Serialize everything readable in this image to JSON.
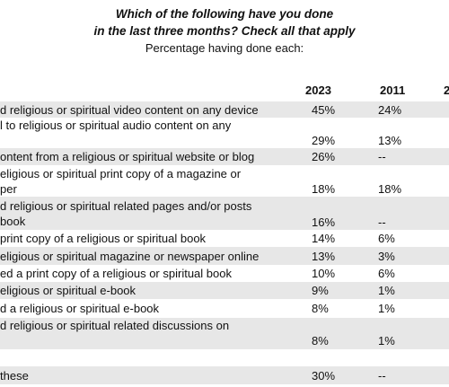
{
  "header": {
    "question_line1": "Which of the following have you done",
    "question_line2": "in the last three months? Check all that apply",
    "subtitle": "Percentage having done each:"
  },
  "columns": [
    "2023",
    "2011",
    "2"
  ],
  "rows": [
    {
      "label": "d religious or spiritual video content on any device",
      "v2023": "45%",
      "v2011": "24%",
      "shaded": true
    },
    {
      "label": "l to religious or spiritual audio content on any",
      "v2023": "29%",
      "v2011": "13%",
      "shaded": false
    },
    {
      "label": "ontent from a religious or spiritual website or blog",
      "v2023": "26%",
      "v2011": "--",
      "shaded": true
    },
    {
      "label": "eligious or spiritual print copy of a magazine or\nper",
      "v2023": "18%",
      "v2011": "18%",
      "shaded": false
    },
    {
      "label": "d religious or spiritual related pages and/or posts\nbook",
      "v2023": "16%",
      "v2011": "--",
      "shaded": true
    },
    {
      "label": "print copy of a religious or spiritual book",
      "v2023": "14%",
      "v2011": "6%",
      "shaded": false
    },
    {
      "label": "eligious or spiritual magazine or newspaper online",
      "v2023": "13%",
      "v2011": "3%",
      "shaded": true
    },
    {
      "label": "ed a print copy of a religious or spiritual book",
      "v2023": "10%",
      "v2011": "6%",
      "shaded": false
    },
    {
      "label": "eligious or spiritual e-book",
      "v2023": "9%",
      "v2011": "1%",
      "shaded": true
    },
    {
      "label": "d a religious or spiritual e-book",
      "v2023": "8%",
      "v2011": "1%",
      "shaded": false
    },
    {
      "label": "d religious or spiritual related discussions on",
      "v2023": "8%",
      "v2011": "1%",
      "shaded": true
    },
    {
      "label": "",
      "v2023": "",
      "v2011": "",
      "shaded": false
    },
    {
      "label": "these",
      "v2023": "30%",
      "v2011": "--",
      "shaded": true
    }
  ]
}
